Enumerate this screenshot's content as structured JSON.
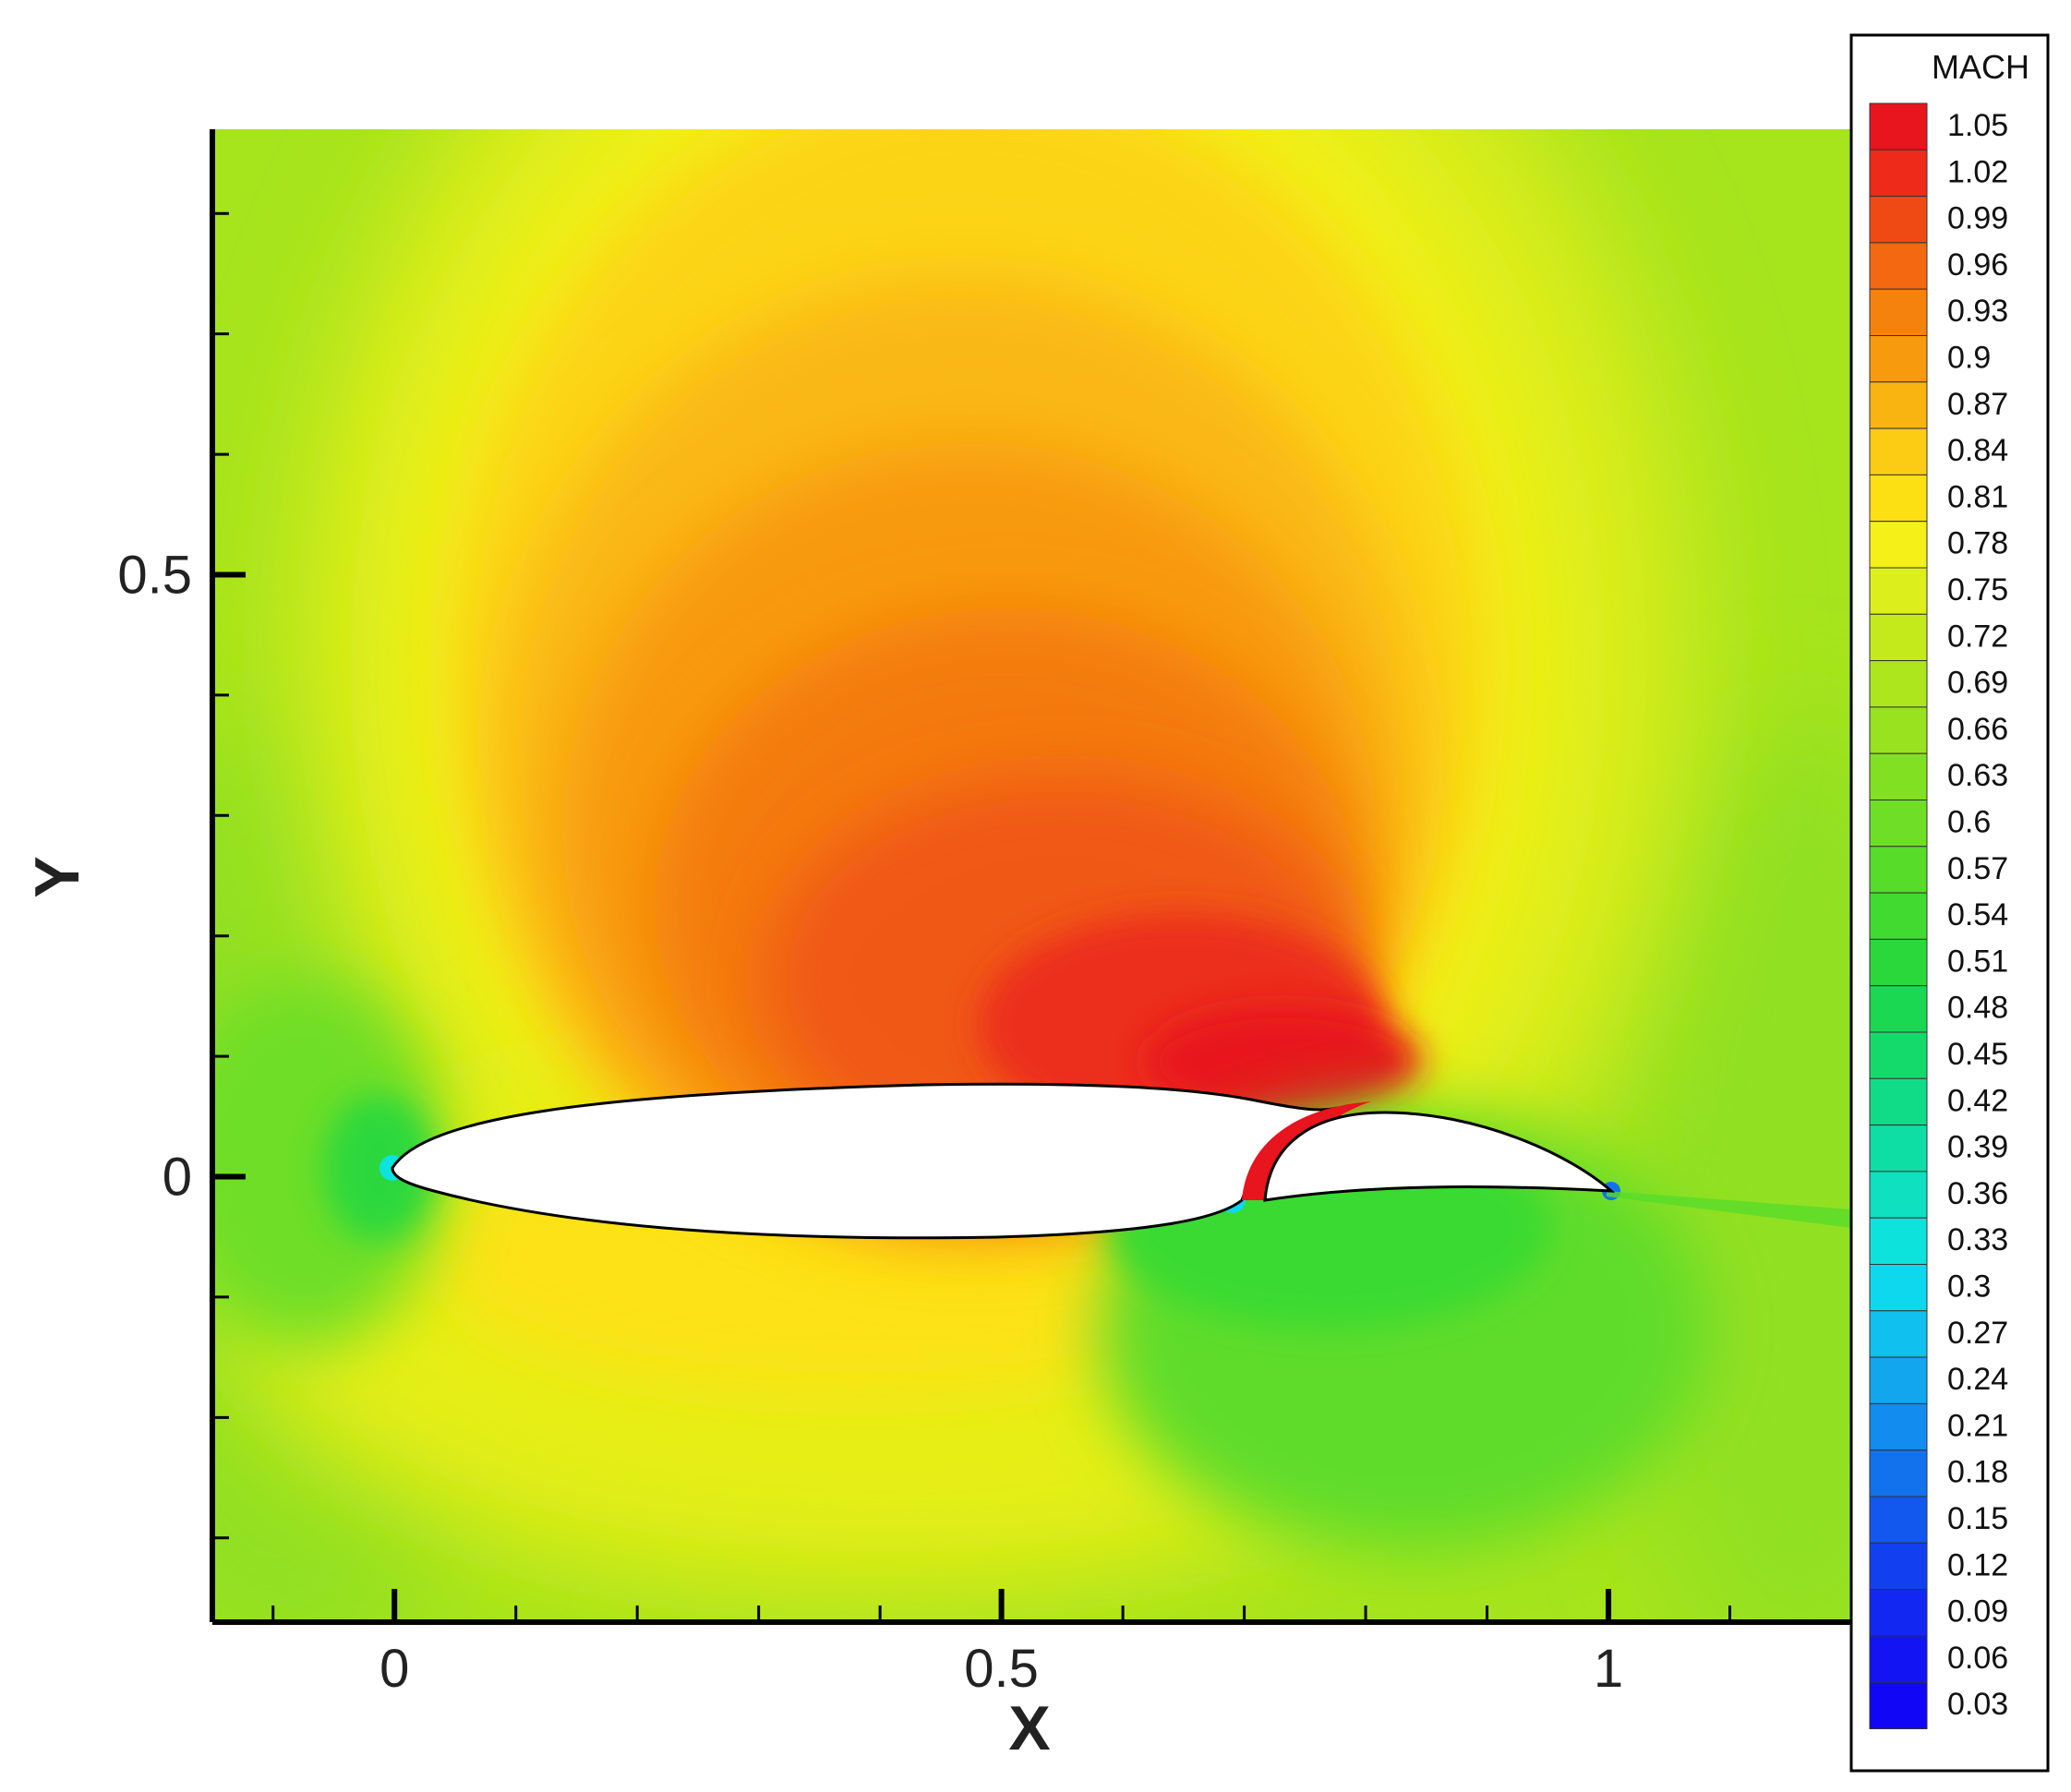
{
  "chart_data": {
    "type": "heatmap",
    "title": "",
    "xlabel": "X",
    "ylabel": "Y",
    "xlim": [
      -0.15,
      1.2
    ],
    "ylim": [
      -0.37,
      0.87
    ],
    "x_ticks": [
      {
        "value": 0,
        "label": "0"
      },
      {
        "value": 0.5,
        "label": "0.5"
      },
      {
        "value": 1,
        "label": "1"
      }
    ],
    "y_ticks": [
      {
        "value": 0,
        "label": "0"
      },
      {
        "value": 0.5,
        "label": "0.5"
      }
    ],
    "x_minor_step": 0.1,
    "y_minor_step": 0.1,
    "colorbar": {
      "title": "MACH",
      "levels": [
        "1.05",
        "1.02",
        "0.99",
        "0.96",
        "0.93",
        "0.9",
        "0.87",
        "0.84",
        "0.81",
        "0.78",
        "0.75",
        "0.72",
        "0.69",
        "0.66",
        "0.63",
        "0.6",
        "0.57",
        "0.54",
        "0.51",
        "0.48",
        "0.45",
        "0.42",
        "0.39",
        "0.36",
        "0.33",
        "0.3",
        "0.27",
        "0.24",
        "0.21",
        "0.18",
        "0.15",
        "0.12",
        "0.09",
        "0.06",
        "0.03"
      ],
      "colors": [
        "#e8141e",
        "#ee2a1a",
        "#f04a14",
        "#f36810",
        "#f6820e",
        "#f89a0e",
        "#fab412",
        "#fccc14",
        "#fde014",
        "#f4f018",
        "#dcee1c",
        "#c4ea1c",
        "#aee61e",
        "#98e220",
        "#82e022",
        "#6ede26",
        "#58dc2a",
        "#40da30",
        "#2ad83c",
        "#1ad852",
        "#14da6c",
        "#10dc88",
        "#0edea4",
        "#0ee0c0",
        "#0ee2dc",
        "#0ed8ee",
        "#10c0ee",
        "#12a6ee",
        "#128cee",
        "#1272ee",
        "#1258ee",
        "#123ff0",
        "#1228f2",
        "#1214f4",
        "#1206f6"
      ]
    },
    "contour_field": "Mach number around a main airfoil (chord 0 to 1) with a slotted trailing-edge flap; peak about 1.05 above the upper surface near x = 0.75, freestream about 0.75",
    "elements": [
      {
        "name": "main-airfoil",
        "x_range": [
          0,
          0.82
        ]
      },
      {
        "name": "flap",
        "x_range": [
          0.7,
          1.0
        ]
      }
    ]
  }
}
